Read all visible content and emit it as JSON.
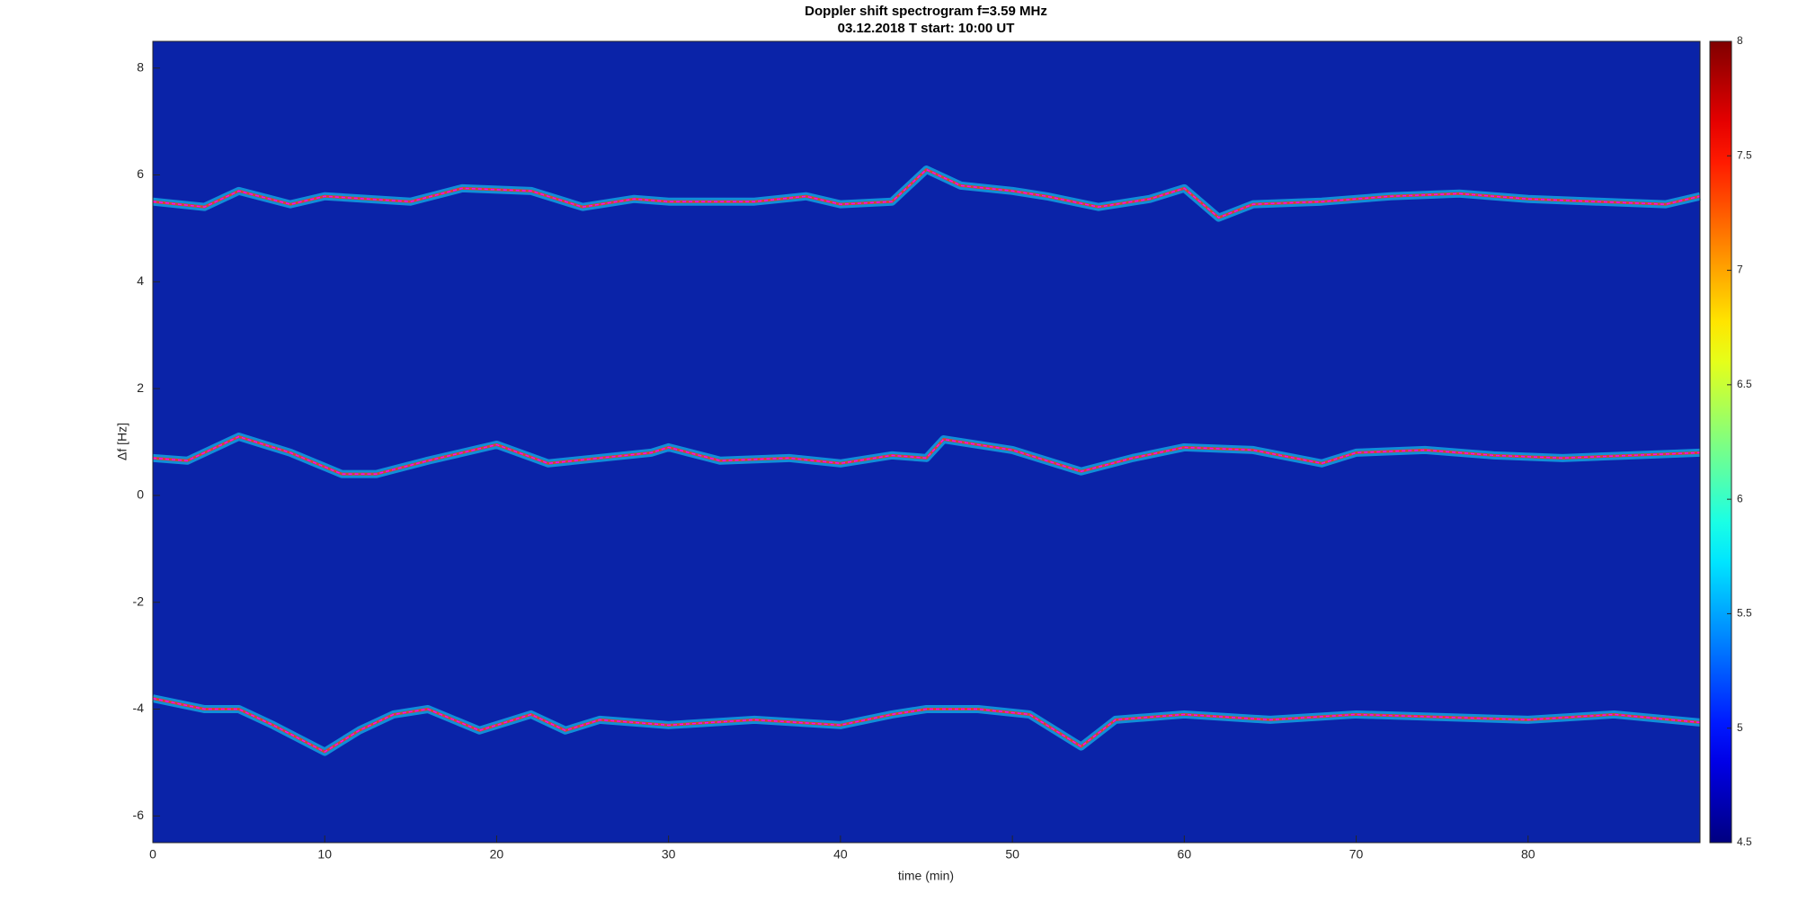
{
  "chart_data": {
    "type": "spectrogram",
    "title": "Doppler shift spectrogram f=3.59 MHz",
    "subtitle": "03.12.2018   T start: 10:00 UT",
    "xlabel": "time (min)",
    "ylabel": "Δf [Hz]",
    "xlim": [
      0,
      90
    ],
    "xticks": [
      0,
      10,
      20,
      30,
      40,
      50,
      60,
      70,
      80
    ],
    "ylim": [
      -6.5,
      8.5
    ],
    "yticks": [
      -6,
      -4,
      -2,
      0,
      2,
      4,
      6,
      8
    ],
    "colormap": "jet",
    "clim": [
      4.5,
      8
    ],
    "cticks": [
      4.5,
      5,
      5.5,
      6,
      6.5,
      7,
      7.5,
      8
    ],
    "series": [
      {
        "color": "#ff00ff",
        "x": [
          0,
          3,
          5,
          8,
          10,
          15,
          18,
          22,
          25,
          28,
          30,
          35,
          38,
          40,
          43,
          45,
          47,
          50,
          52,
          55,
          58,
          60,
          62,
          64,
          68,
          72,
          76,
          80,
          84,
          88,
          90
        ],
        "values": [
          5.5,
          5.4,
          5.7,
          5.45,
          5.6,
          5.5,
          5.75,
          5.7,
          5.4,
          5.55,
          5.5,
          5.5,
          5.6,
          5.45,
          5.5,
          6.1,
          5.8,
          5.7,
          5.6,
          5.4,
          5.55,
          5.75,
          5.2,
          5.45,
          5.5,
          5.6,
          5.65,
          5.55,
          5.5,
          5.45,
          5.6
        ]
      },
      {
        "color": "#ff00ff",
        "x": [
          0,
          2,
          5,
          8,
          11,
          13,
          16,
          20,
          23,
          26,
          29,
          30,
          33,
          37,
          40,
          43,
          45,
          46,
          50,
          54,
          57,
          60,
          64,
          68,
          70,
          74,
          78,
          82,
          86,
          90
        ],
        "values": [
          0.7,
          0.65,
          1.1,
          0.8,
          0.4,
          0.4,
          0.65,
          0.95,
          0.6,
          0.7,
          0.8,
          0.9,
          0.65,
          0.7,
          0.6,
          0.75,
          0.7,
          1.05,
          0.85,
          0.45,
          0.7,
          0.9,
          0.85,
          0.6,
          0.8,
          0.85,
          0.75,
          0.7,
          0.75,
          0.8
        ]
      },
      {
        "color": "#ff00ff",
        "x": [
          0,
          3,
          5,
          7,
          10,
          12,
          14,
          16,
          19,
          22,
          24,
          26,
          30,
          35,
          40,
          43,
          45,
          48,
          51,
          54,
          56,
          60,
          65,
          70,
          75,
          80,
          85,
          90
        ],
        "values": [
          -3.8,
          -4.0,
          -4.0,
          -4.3,
          -4.8,
          -4.4,
          -4.1,
          -4.0,
          -4.4,
          -4.1,
          -4.4,
          -4.2,
          -4.3,
          -4.2,
          -4.3,
          -4.1,
          -4.0,
          -4.0,
          -4.1,
          -4.7,
          -4.2,
          -4.1,
          -4.2,
          -4.1,
          -4.15,
          -4.2,
          -4.1,
          -4.25
        ]
      }
    ]
  }
}
